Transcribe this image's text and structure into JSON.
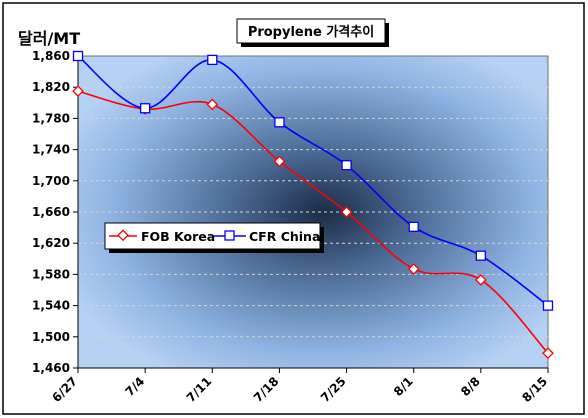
{
  "chart_data": {
    "type": "line",
    "title": "Propylene 가격추이",
    "ylabel": "달러/MT",
    "xlabel": "",
    "categories": [
      "6/27",
      "7/4",
      "7/11",
      "7/18",
      "7/25",
      "8/1",
      "8/8",
      "8/15"
    ],
    "ylim": [
      1460,
      1860
    ],
    "yticks": [
      1460,
      1500,
      1540,
      1580,
      1620,
      1660,
      1700,
      1740,
      1780,
      1820,
      1860
    ],
    "grid": "horizontal dashed",
    "legend_position": "center-left",
    "series": [
      {
        "name": "FOB Korea",
        "color": "#ff0000",
        "marker": "diamond",
        "values": [
          1815,
          1792,
          1798,
          1725,
          1660,
          1587,
          1573,
          1479
        ]
      },
      {
        "name": "CFR China",
        "color": "#0000ff",
        "marker": "square",
        "values": [
          1860,
          1793,
          1855,
          1775,
          1720,
          1641,
          1604,
          1540
        ]
      }
    ]
  }
}
